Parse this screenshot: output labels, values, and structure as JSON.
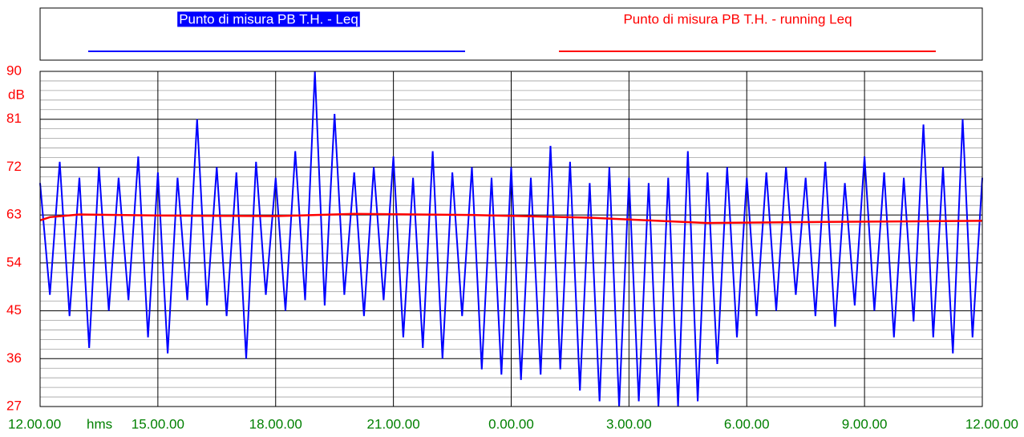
{
  "chart_data": {
    "type": "line",
    "y_unit": "dB",
    "x_unit": "hms",
    "series": [
      {
        "name": "Punto di misura PB T.H. - Leq",
        "color": "#0000ff",
        "x": [
          0,
          0.25,
          0.5,
          0.75,
          1,
          1.25,
          1.5,
          1.75,
          2,
          2.25,
          2.5,
          2.75,
          3,
          3.25,
          3.5,
          3.75,
          4,
          4.25,
          4.5,
          4.75,
          5,
          5.25,
          5.5,
          5.75,
          6,
          6.25,
          6.5,
          6.75,
          7,
          7.25,
          7.5,
          7.75,
          8,
          8.25,
          8.5,
          8.75,
          9,
          9.25,
          9.5,
          9.75,
          10,
          10.25,
          10.5,
          10.75,
          11,
          11.25,
          11.5,
          11.75,
          12,
          12.25,
          12.5,
          12.75,
          13,
          13.25,
          13.5,
          13.75,
          14,
          14.25,
          14.5,
          14.75,
          15,
          15.25,
          15.5,
          15.75,
          16,
          16.25,
          16.5,
          16.75,
          17,
          17.25,
          17.5,
          17.75,
          18,
          18.25,
          18.5,
          18.75,
          19,
          19.25,
          19.5,
          19.75,
          20,
          20.25,
          20.5,
          20.75,
          21,
          21.25,
          21.5,
          21.75,
          22,
          22.25,
          22.5,
          22.75,
          23,
          23.25,
          23.5,
          23.75,
          24
        ],
        "values": [
          69,
          48,
          73,
          44,
          70,
          38,
          72,
          45,
          70,
          47,
          74,
          40,
          71,
          37,
          70,
          47,
          81,
          46,
          72,
          44,
          71,
          36,
          73,
          48,
          70,
          45,
          75,
          47,
          90,
          46,
          82,
          48,
          71,
          44,
          72,
          47,
          74,
          40,
          70,
          38,
          75,
          36,
          71,
          44,
          72,
          34,
          70,
          33,
          72,
          32,
          70,
          33,
          76,
          34,
          73,
          30,
          69,
          28,
          72,
          27,
          70,
          28,
          69,
          27,
          70,
          27,
          75,
          28,
          71,
          35,
          72,
          40,
          70,
          44,
          71,
          45,
          72,
          48,
          70,
          44,
          73,
          42,
          69,
          46,
          74,
          45,
          71,
          40,
          70,
          43,
          80,
          40,
          72,
          37,
          81,
          40,
          70
        ]
      },
      {
        "name": "Punto di misura PB T.H. - running Leq",
        "color": "#ff0000",
        "x": [
          0,
          0.25,
          1,
          3,
          6,
          8,
          11,
          14,
          17,
          20,
          24
        ],
        "values": [
          62,
          62.6,
          63.1,
          62.9,
          62.8,
          63.2,
          63,
          62.5,
          61.5,
          61.7,
          61.9
        ]
      }
    ],
    "xlim": [
      0,
      24
    ],
    "xticks": [
      {
        "value": 0,
        "label": "12.00.00"
      },
      {
        "value": 3,
        "label": "15.00.00"
      },
      {
        "value": 6,
        "label": "18.00.00"
      },
      {
        "value": 9,
        "label": "21.00.00"
      },
      {
        "value": 12,
        "label": "0.00.00"
      },
      {
        "value": 15,
        "label": "3.00.00"
      },
      {
        "value": 18,
        "label": "6.00.00"
      },
      {
        "value": 21,
        "label": "9.00.00"
      },
      {
        "value": 24,
        "label": "12.00.00"
      }
    ],
    "ylim": [
      27,
      90
    ],
    "yticks": [
      27,
      36,
      45,
      54,
      63,
      72,
      81,
      90
    ],
    "grid": true,
    "minor_divisions": 5,
    "tick_color_y": "#ff0000",
    "tick_color_x": "#008000",
    "legend": "top"
  }
}
